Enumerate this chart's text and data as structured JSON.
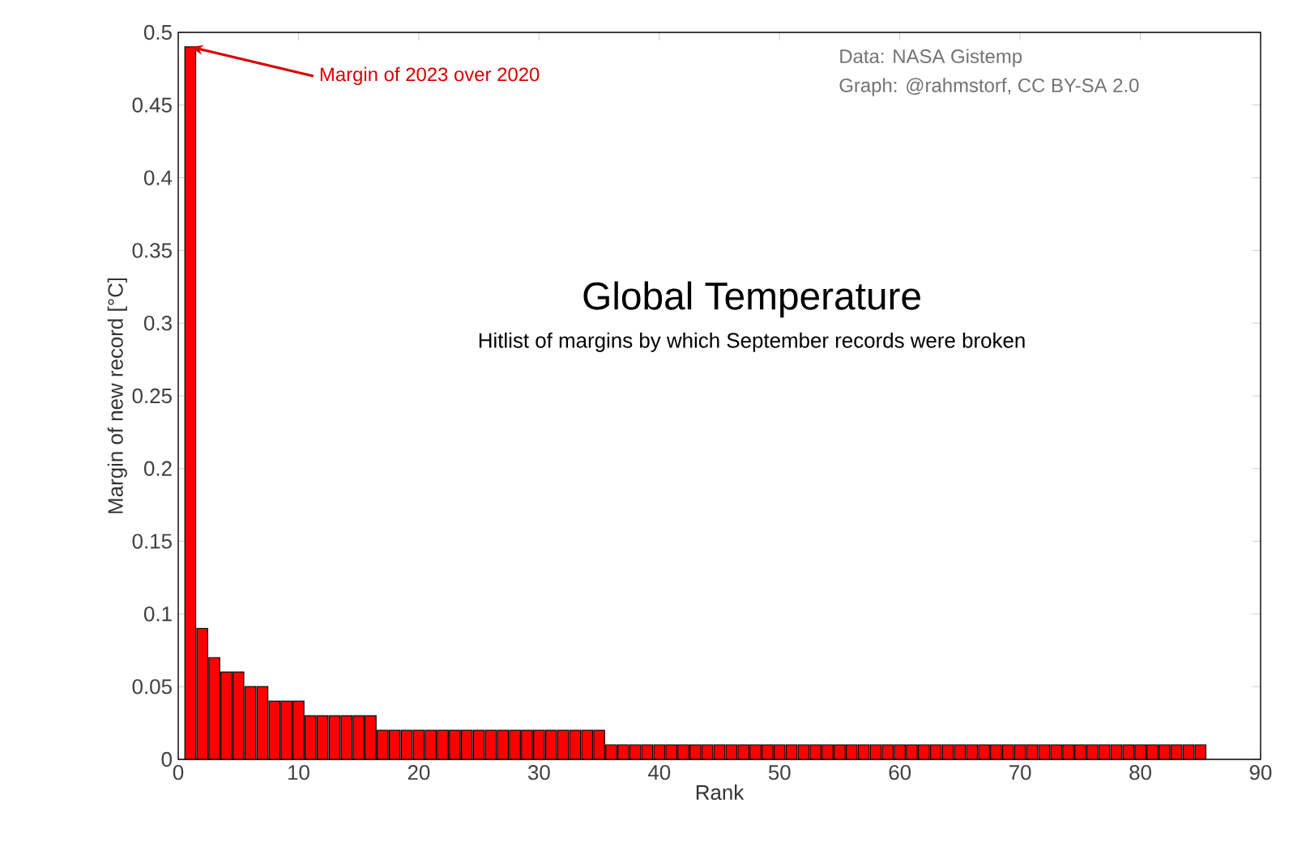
{
  "chart_data": {
    "type": "bar",
    "title": "Global Temperature",
    "subtitle": "Hitlist of margins by which September records were broken",
    "xlabel": "Rank",
    "ylabel": "Margin of new record [°C]",
    "annotations": [
      {
        "text": "Margin of 2023 over 2020",
        "x": 1,
        "y": 0.49
      },
      "Data: NASA Gistemp",
      "Graph: @rahmstorf, CC BY-SA 2.0"
    ],
    "x": [
      1,
      2,
      3,
      4,
      5,
      6,
      7,
      8,
      9,
      10,
      11,
      12,
      13,
      14,
      15,
      16,
      17,
      18,
      19,
      20,
      21,
      22,
      23,
      24,
      25,
      26,
      27,
      28,
      29,
      30,
      31,
      32,
      33,
      34,
      35,
      36,
      37,
      38,
      39,
      40,
      41,
      42,
      43,
      44,
      45,
      46,
      47,
      48,
      49,
      50,
      51,
      52,
      53,
      54,
      55,
      56,
      57,
      58,
      59,
      60,
      61,
      62,
      63,
      64,
      65,
      66,
      67,
      68,
      69,
      70,
      71,
      72,
      73,
      74,
      75,
      76,
      77,
      78,
      79,
      80,
      81,
      82,
      83,
      84,
      85
    ],
    "values": [
      0.49,
      0.09,
      0.07,
      0.06,
      0.06,
      0.05,
      0.05,
      0.04,
      0.04,
      0.04,
      0.03,
      0.03,
      0.03,
      0.03,
      0.03,
      0.03,
      0.02,
      0.02,
      0.02,
      0.02,
      0.02,
      0.02,
      0.02,
      0.02,
      0.02,
      0.02,
      0.02,
      0.02,
      0.02,
      0.02,
      0.02,
      0.02,
      0.02,
      0.02,
      0.02,
      0.01,
      0.01,
      0.01,
      0.01,
      0.01,
      0.01,
      0.01,
      0.01,
      0.01,
      0.01,
      0.01,
      0.01,
      0.01,
      0.01,
      0.01,
      0.01,
      0.01,
      0.01,
      0.01,
      0.01,
      0.01,
      0.01,
      0.01,
      0.01,
      0.01,
      0.01,
      0.01,
      0.01,
      0.01,
      0.01,
      0.01,
      0.01,
      0.01,
      0.01,
      0.01,
      0.01,
      0.01,
      0.01,
      0.01,
      0.01,
      0.01,
      0.01,
      0.01,
      0.01,
      0.01,
      0.01,
      0.01,
      0.01,
      0.01,
      0.01
    ],
    "color": "#ff0000",
    "xlim": [
      0,
      90
    ],
    "xticks": [
      0,
      10,
      20,
      30,
      40,
      50,
      60,
      70,
      80,
      90
    ],
    "ylim": [
      0,
      0.5
    ],
    "yticks": [
      0,
      0.05,
      0.1,
      0.15,
      0.2,
      0.25,
      0.3,
      0.35,
      0.4,
      0.45,
      0.5
    ]
  }
}
